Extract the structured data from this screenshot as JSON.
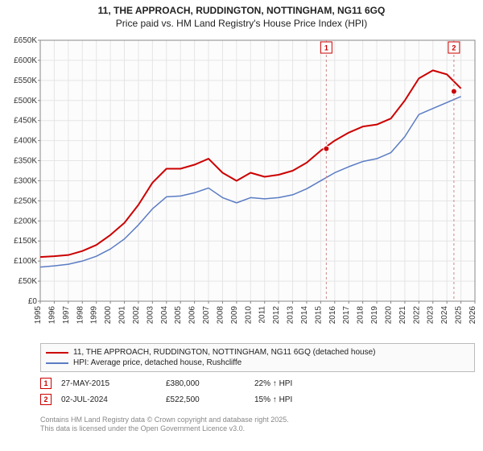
{
  "title_line1": "11, THE APPROACH, RUDDINGTON, NOTTINGHAM, NG11 6GQ",
  "title_line2": "Price paid vs. HM Land Registry's House Price Index (HPI)",
  "chart": {
    "type": "line",
    "background_color": "#ffffff",
    "plot_background_color": "#fcfcfc",
    "grid_color": "#e5e5e5",
    "axis_color": "#888888",
    "label_fontsize": 10,
    "title_fontsize": 12,
    "x_years": [
      1995,
      1996,
      1997,
      1998,
      1999,
      2000,
      2001,
      2002,
      2003,
      2004,
      2005,
      2006,
      2007,
      2008,
      2009,
      2010,
      2011,
      2012,
      2013,
      2014,
      2015,
      2016,
      2017,
      2018,
      2019,
      2020,
      2021,
      2022,
      2023,
      2024,
      2025,
      2026
    ],
    "ylim": [
      0,
      650000
    ],
    "ytick_step": 50000,
    "ytick_labels": [
      "£0",
      "£50K",
      "£100K",
      "£150K",
      "£200K",
      "£250K",
      "£300K",
      "£350K",
      "£400K",
      "£450K",
      "£500K",
      "£550K",
      "£600K",
      "£650K"
    ],
    "series": [
      {
        "name": "price_paid",
        "label": "11, THE APPROACH, RUDDINGTON, NOTTINGHAM, NG11 6GQ (detached house)",
        "color": "#cc0000",
        "line_width": 2,
        "y_by_year": [
          110000,
          112000,
          115000,
          125000,
          140000,
          165000,
          195000,
          240000,
          295000,
          330000,
          330000,
          340000,
          355000,
          320000,
          300000,
          320000,
          310000,
          315000,
          325000,
          345000,
          375000,
          400000,
          420000,
          435000,
          440000,
          455000,
          500000,
          555000,
          575000,
          565000,
          530000
        ]
      },
      {
        "name": "hpi",
        "label": "HPI: Average price, detached house, Rushcliffe",
        "color": "#5b7cc4",
        "line_width": 1.5,
        "y_by_year": [
          85000,
          88000,
          92000,
          100000,
          112000,
          130000,
          155000,
          190000,
          230000,
          260000,
          262000,
          270000,
          282000,
          258000,
          245000,
          258000,
          255000,
          258000,
          265000,
          280000,
          300000,
          320000,
          335000,
          348000,
          355000,
          370000,
          410000,
          465000,
          480000,
          495000,
          510000
        ]
      }
    ],
    "markers": [
      {
        "id": "1",
        "year": 2015.4,
        "price": 380000
      },
      {
        "id": "2",
        "year": 2024.5,
        "price": 522500
      }
    ]
  },
  "legend": {
    "series1_label": "11, THE APPROACH, RUDDINGTON, NOTTINGHAM, NG11 6GQ (detached house)",
    "series2_label": "HPI: Average price, detached house, Rushcliffe"
  },
  "marker_rows": [
    {
      "id": "1",
      "date": "27-MAY-2015",
      "price": "£380,000",
      "hpi": "22% ↑ HPI"
    },
    {
      "id": "2",
      "date": "02-JUL-2024",
      "price": "£522,500",
      "hpi": "15% ↑ HPI"
    }
  ],
  "footer": {
    "line1": "Contains HM Land Registry data © Crown copyright and database right 2025.",
    "line2": "This data is licensed under the Open Government Licence v3.0."
  },
  "colors": {
    "series1": "#cc0000",
    "series2": "#5b7cc4",
    "marker_border": "#cc0000",
    "marker_dash": "#cc8888"
  }
}
